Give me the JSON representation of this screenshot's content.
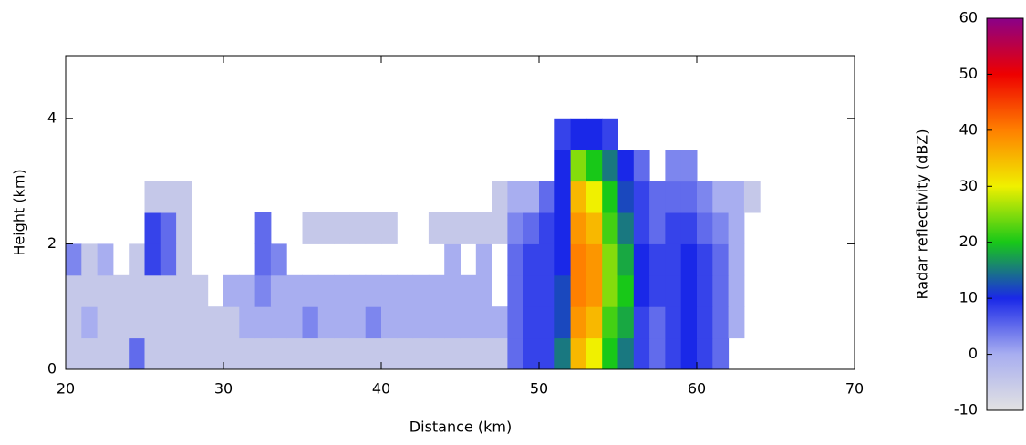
{
  "chart_data": {
    "type": "heatmap",
    "xlabel": "Distance (km)",
    "ylabel": "Height (km)",
    "colorbar_label": "Radar reflectivity (dBZ)",
    "xlim": [
      20,
      70
    ],
    "xticks": [
      20,
      30,
      40,
      50,
      60,
      70
    ],
    "ylim": [
      0,
      5
    ],
    "yticks": [
      0,
      2,
      4
    ],
    "clim": [
      -10,
      60
    ],
    "cticks": [
      -10,
      0,
      10,
      20,
      30,
      40,
      50,
      60
    ],
    "colors": [
      "#e2e2e2",
      "#a8aef0",
      "#1a28e8",
      "#18c818",
      "#f0f000",
      "#ff8000",
      "#ee0000",
      "#8a0088"
    ],
    "x": [
      20.5,
      21.5,
      22.5,
      23.5,
      24.5,
      25.5,
      26.5,
      27.5,
      28.5,
      29.5,
      30.5,
      31.5,
      32.5,
      33.5,
      34.5,
      35.5,
      36.5,
      37.5,
      38.5,
      39.5,
      40.5,
      41.5,
      42.5,
      43.5,
      44.5,
      45.5,
      46.5,
      47.5,
      48.5,
      49.5,
      50.5,
      51.5,
      52.5,
      53.5,
      54.5,
      55.5,
      56.5,
      57.5,
      58.5,
      59.5,
      60.5,
      61.5,
      62.5,
      63.5,
      64.5
    ],
    "y": [
      0.25,
      0.75,
      1.25,
      1.75,
      2.25,
      2.75,
      3.25,
      3.75
    ],
    "z": [
      [
        -5,
        -5,
        -5,
        -5,
        5,
        -5,
        -5,
        -5,
        -5,
        -5,
        -5,
        -5,
        -5,
        -5,
        -5,
        -5,
        -5,
        -5,
        -5,
        -5,
        -5,
        -5,
        -5,
        -5,
        -5,
        -5,
        -5,
        -5,
        5,
        8,
        8,
        15,
        35,
        30,
        20,
        15,
        8,
        5,
        8,
        10,
        8,
        5,
        null,
        null,
        null
      ],
      [
        -5,
        0,
        -5,
        -5,
        -5,
        -5,
        -5,
        -5,
        -5,
        -5,
        -5,
        0,
        0,
        0,
        0,
        3,
        0,
        0,
        0,
        3,
        0,
        0,
        0,
        0,
        0,
        0,
        0,
        0,
        5,
        8,
        8,
        12,
        38,
        35,
        22,
        18,
        8,
        5,
        8,
        10,
        8,
        5,
        0,
        null,
        null
      ],
      [
        -5,
        -5,
        -5,
        -5,
        -5,
        -5,
        -5,
        -5,
        -5,
        null,
        0,
        0,
        3,
        0,
        0,
        0,
        0,
        0,
        0,
        0,
        0,
        0,
        0,
        0,
        0,
        0,
        0,
        null,
        5,
        8,
        8,
        12,
        40,
        38,
        25,
        20,
        10,
        8,
        8,
        10,
        8,
        5,
        0,
        null,
        null
      ],
      [
        3,
        -5,
        0,
        null,
        -5,
        8,
        5,
        -5,
        null,
        null,
        null,
        null,
        5,
        3,
        null,
        null,
        null,
        null,
        null,
        null,
        null,
        null,
        null,
        null,
        0,
        null,
        0,
        null,
        5,
        8,
        8,
        10,
        40,
        38,
        25,
        18,
        10,
        8,
        8,
        10,
        8,
        5,
        0,
        null,
        null
      ],
      [
        null,
        null,
        null,
        null,
        null,
        8,
        5,
        -5,
        null,
        null,
        null,
        null,
        5,
        null,
        null,
        -5,
        -5,
        -5,
        -5,
        -5,
        -5,
        null,
        null,
        -5,
        -5,
        -5,
        -5,
        -5,
        3,
        5,
        8,
        10,
        38,
        35,
        22,
        15,
        8,
        5,
        8,
        8,
        5,
        3,
        0,
        null,
        null
      ],
      [
        null,
        null,
        null,
        null,
        null,
        -5,
        -5,
        -5,
        null,
        null,
        null,
        null,
        null,
        null,
        null,
        null,
        null,
        null,
        null,
        null,
        null,
        null,
        null,
        null,
        null,
        null,
        null,
        -5,
        0,
        0,
        5,
        10,
        35,
        30,
        20,
        12,
        8,
        5,
        5,
        5,
        3,
        0,
        0,
        -5,
        null
      ],
      [
        null,
        null,
        null,
        null,
        null,
        null,
        null,
        null,
        null,
        null,
        null,
        null,
        null,
        null,
        null,
        null,
        null,
        null,
        null,
        null,
        null,
        null,
        null,
        null,
        null,
        null,
        null,
        null,
        null,
        null,
        null,
        10,
        25,
        20,
        15,
        10,
        5,
        null,
        3,
        3,
        null,
        null,
        null,
        null,
        null
      ],
      [
        null,
        null,
        null,
        null,
        null,
        null,
        null,
        null,
        null,
        null,
        null,
        null,
        null,
        null,
        null,
        null,
        null,
        null,
        null,
        null,
        null,
        null,
        null,
        null,
        null,
        null,
        null,
        null,
        null,
        null,
        null,
        8,
        10,
        10,
        8,
        null,
        null,
        null,
        null,
        null,
        null,
        null,
        null,
        null,
        null
      ]
    ]
  }
}
